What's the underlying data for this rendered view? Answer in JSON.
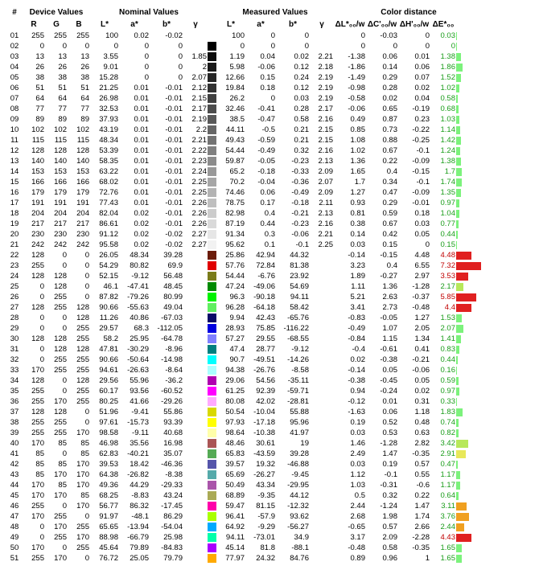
{
  "headerGroups": {
    "num": "#",
    "device": "Device Values",
    "nominal": "Nominal Values",
    "measured": "Measured Values",
    "color": "Color distance"
  },
  "headerCols": {
    "r": "R",
    "g": "G",
    "b": "B",
    "l": "L*",
    "a": "a*",
    "bs": "b*",
    "y": "γ",
    "ml": "L*",
    "ma": "a*",
    "mb": "b*",
    "my": "γ",
    "dl": "ΔL*₀₀/w",
    "dc": "ΔC'₀₀/w",
    "dh": "ΔH'₀₀/w",
    "de": "ΔE*₀₀"
  },
  "style": {
    "de_good_color": "#1a9c1a",
    "de_bad_color": "#c00000",
    "bar_max": 8.0
  },
  "rows": [
    {
      "i": "01",
      "r": 255,
      "g": 255,
      "b": 255,
      "l": "100",
      "a": "0.02",
      "bs": "-0.02",
      "y": "",
      "sw": "#ffffff",
      "ml": "100",
      "ma": "0",
      "mb": "0",
      "my": "",
      "dl": "0",
      "dc": "-0.03",
      "dh": "0",
      "de": "0.03",
      "bad": false,
      "bar": "#7cf27c"
    },
    {
      "i": "02",
      "r": 0,
      "g": 0,
      "b": 0,
      "l": "0",
      "a": "0",
      "bs": "0",
      "y": "",
      "sw": "#000000",
      "ml": "0",
      "ma": "0",
      "mb": "0",
      "my": "",
      "dl": "0",
      "dc": "0",
      "dh": "0",
      "de": "0",
      "bad": false,
      "bar": "#7cf27c"
    },
    {
      "i": "03",
      "r": 13,
      "g": 13,
      "b": 13,
      "l": "3.55",
      "a": "0",
      "bs": "0",
      "y": "1.85",
      "sw": "#0d0d0d",
      "ml": "1.19",
      "ma": "0.04",
      "mb": "0.02",
      "my": "2.21",
      "dl": "-1.38",
      "dc": "0.06",
      "dh": "0.01",
      "de": "1.38",
      "bad": false,
      "bar": "#7cf27c"
    },
    {
      "i": "04",
      "r": 26,
      "g": 26,
      "b": 26,
      "l": "9.01",
      "a": "0",
      "bs": "0",
      "y": "2",
      "sw": "#1a1a1a",
      "ml": "5.98",
      "ma": "-0.06",
      "mb": "0.12",
      "my": "2.18",
      "dl": "-1.86",
      "dc": "0.14",
      "dh": "0.06",
      "de": "1.86",
      "bad": false,
      "bar": "#7cf27c"
    },
    {
      "i": "05",
      "r": 38,
      "g": 38,
      "b": 38,
      "l": "15.28",
      "a": "0",
      "bs": "0",
      "y": "2.07",
      "sw": "#262626",
      "ml": "12.66",
      "ma": "0.15",
      "mb": "0.24",
      "my": "2.19",
      "dl": "-1.49",
      "dc": "0.29",
      "dh": "0.07",
      "de": "1.52",
      "bad": false,
      "bar": "#7cf27c"
    },
    {
      "i": "06",
      "r": 51,
      "g": 51,
      "b": 51,
      "l": "21.25",
      "a": "0.01",
      "bs": "-0.01",
      "y": "2.12",
      "sw": "#333333",
      "ml": "19.84",
      "ma": "0.18",
      "mb": "0.12",
      "my": "2.19",
      "dl": "-0.98",
      "dc": "0.28",
      "dh": "0.02",
      "de": "1.02",
      "bad": false,
      "bar": "#7cf27c"
    },
    {
      "i": "07",
      "r": 64,
      "g": 64,
      "b": 64,
      "l": "26.98",
      "a": "0.01",
      "bs": "-0.01",
      "y": "2.15",
      "sw": "#404040",
      "ml": "26.2",
      "ma": "0",
      "mb": "0.03",
      "my": "2.19",
      "dl": "-0.58",
      "dc": "0.02",
      "dh": "0.04",
      "de": "0.58",
      "bad": false,
      "bar": "#7cf27c"
    },
    {
      "i": "08",
      "r": 77,
      "g": 77,
      "b": 77,
      "l": "32.53",
      "a": "0.01",
      "bs": "-0.01",
      "y": "2.17",
      "sw": "#4d4d4d",
      "ml": "32.46",
      "ma": "-0.41",
      "mb": "0.28",
      "my": "2.17",
      "dl": "-0.06",
      "dc": "0.65",
      "dh": "-0.19",
      "de": "0.68",
      "bad": false,
      "bar": "#7cf27c"
    },
    {
      "i": "09",
      "r": 89,
      "g": 89,
      "b": 89,
      "l": "37.93",
      "a": "0.01",
      "bs": "-0.01",
      "y": "2.19",
      "sw": "#595959",
      "ml": "38.5",
      "ma": "-0.47",
      "mb": "0.58",
      "my": "2.16",
      "dl": "0.49",
      "dc": "0.87",
      "dh": "0.23",
      "de": "1.03",
      "bad": false,
      "bar": "#7cf27c"
    },
    {
      "i": "10",
      "r": 102,
      "g": 102,
      "b": 102,
      "l": "43.19",
      "a": "0.01",
      "bs": "-0.01",
      "y": "2.2",
      "sw": "#666666",
      "ml": "44.11",
      "ma": "-0.5",
      "mb": "0.21",
      "my": "2.15",
      "dl": "0.85",
      "dc": "0.73",
      "dh": "-0.22",
      "de": "1.14",
      "bad": false,
      "bar": "#7cf27c"
    },
    {
      "i": "11",
      "r": 115,
      "g": 115,
      "b": 115,
      "l": "48.34",
      "a": "0.01",
      "bs": "-0.01",
      "y": "2.21",
      "sw": "#737373",
      "ml": "49.43",
      "ma": "-0.59",
      "mb": "0.21",
      "my": "2.15",
      "dl": "1.08",
      "dc": "0.88",
      "dh": "-0.25",
      "de": "1.42",
      "bad": false,
      "bar": "#7cf27c"
    },
    {
      "i": "12",
      "r": 128,
      "g": 128,
      "b": 128,
      "l": "53.39",
      "a": "0.01",
      "bs": "-0.01",
      "y": "2.22",
      "sw": "#808080",
      "ml": "54.44",
      "ma": "-0.49",
      "mb": "0.32",
      "my": "2.16",
      "dl": "1.02",
      "dc": "0.67",
      "dh": "-0.1",
      "de": "1.24",
      "bad": false,
      "bar": "#7cf27c"
    },
    {
      "i": "13",
      "r": 140,
      "g": 140,
      "b": 140,
      "l": "58.35",
      "a": "0.01",
      "bs": "-0.01",
      "y": "2.23",
      "sw": "#8c8c8c",
      "ml": "59.87",
      "ma": "-0.05",
      "mb": "-0.23",
      "my": "2.13",
      "dl": "1.36",
      "dc": "0.22",
      "dh": "-0.09",
      "de": "1.38",
      "bad": false,
      "bar": "#7cf27c"
    },
    {
      "i": "14",
      "r": 153,
      "g": 153,
      "b": 153,
      "l": "63.22",
      "a": "0.01",
      "bs": "-0.01",
      "y": "2.24",
      "sw": "#999999",
      "ml": "65.2",
      "ma": "-0.18",
      "mb": "-0.33",
      "my": "2.09",
      "dl": "1.65",
      "dc": "0.4",
      "dh": "-0.15",
      "de": "1.7",
      "bad": false,
      "bar": "#7cf27c"
    },
    {
      "i": "15",
      "r": 166,
      "g": 166,
      "b": 166,
      "l": "68.02",
      "a": "0.01",
      "bs": "-0.01",
      "y": "2.25",
      "sw": "#a6a6a6",
      "ml": "70.2",
      "ma": "-0.04",
      "mb": "-0.36",
      "my": "2.07",
      "dl": "1.7",
      "dc": "0.34",
      "dh": "-0.1",
      "de": "1.74",
      "bad": false,
      "bar": "#7cf27c"
    },
    {
      "i": "16",
      "r": 179,
      "g": 179,
      "b": 179,
      "l": "72.76",
      "a": "0.01",
      "bs": "-0.01",
      "y": "2.25",
      "sw": "#b3b3b3",
      "ml": "74.46",
      "ma": "0.06",
      "mb": "-0.49",
      "my": "2.09",
      "dl": "1.27",
      "dc": "0.47",
      "dh": "-0.09",
      "de": "1.35",
      "bad": false,
      "bar": "#7cf27c"
    },
    {
      "i": "17",
      "r": 191,
      "g": 191,
      "b": 191,
      "l": "77.43",
      "a": "0.01",
      "bs": "-0.01",
      "y": "2.26",
      "sw": "#bfbfbf",
      "ml": "78.75",
      "ma": "0.17",
      "mb": "-0.18",
      "my": "2.11",
      "dl": "0.93",
      "dc": "0.29",
      "dh": "-0.01",
      "de": "0.97",
      "bad": false,
      "bar": "#7cf27c"
    },
    {
      "i": "18",
      "r": 204,
      "g": 204,
      "b": 204,
      "l": "82.04",
      "a": "0.02",
      "bs": "-0.01",
      "y": "2.26",
      "sw": "#cccccc",
      "ml": "82.98",
      "ma": "0.4",
      "mb": "-0.21",
      "my": "2.13",
      "dl": "0.81",
      "dc": "0.59",
      "dh": "0.18",
      "de": "1.04",
      "bad": false,
      "bar": "#7cf27c"
    },
    {
      "i": "19",
      "r": 217,
      "g": 217,
      "b": 217,
      "l": "86.61",
      "a": "0.02",
      "bs": "-0.01",
      "y": "2.26",
      "sw": "#d9d9d9",
      "ml": "87.19",
      "ma": "0.44",
      "mb": "-0.23",
      "my": "2.16",
      "dl": "0.38",
      "dc": "0.67",
      "dh": "0.03",
      "de": "0.77",
      "bad": false,
      "bar": "#7cf27c"
    },
    {
      "i": "20",
      "r": 230,
      "g": 230,
      "b": 230,
      "l": "91.12",
      "a": "0.02",
      "bs": "-0.02",
      "y": "2.27",
      "sw": "#e6e6e6",
      "ml": "91.34",
      "ma": "0.3",
      "mb": "-0.06",
      "my": "2.21",
      "dl": "0.14",
      "dc": "0.42",
      "dh": "0.05",
      "de": "0.44",
      "bad": false,
      "bar": "#7cf27c"
    },
    {
      "i": "21",
      "r": 242,
      "g": 242,
      "b": 242,
      "l": "95.58",
      "a": "0.02",
      "bs": "-0.02",
      "y": "2.27",
      "sw": "#f2f2f2",
      "ml": "95.62",
      "ma": "0.1",
      "mb": "-0.1",
      "my": "2.25",
      "dl": "0.03",
      "dc": "0.15",
      "dh": "0",
      "de": "0.15",
      "bad": false,
      "bar": "#7cf27c"
    },
    {
      "i": "22",
      "r": 128,
      "g": 0,
      "b": 0,
      "l": "26.05",
      "a": "48.34",
      "bs": "39.28",
      "y": "",
      "sw": "#6b1c0a",
      "ml": "25.86",
      "ma": "42.94",
      "mb": "44.32",
      "my": "",
      "dl": "-0.14",
      "dc": "-0.15",
      "dh": "4.48",
      "de": "4.48",
      "bad": true,
      "bar": "#e02020"
    },
    {
      "i": "23",
      "r": 255,
      "g": 0,
      "b": 0,
      "l": "54.29",
      "a": "80.82",
      "bs": "69.9",
      "y": "",
      "sw": "#e00000",
      "ml": "57.76",
      "ma": "72.84",
      "mb": "81.38",
      "my": "",
      "dl": "3.23",
      "dc": "0.4",
      "dh": "6.55",
      "de": "7.32",
      "bad": true,
      "bar": "#e02020"
    },
    {
      "i": "24",
      "r": 128,
      "g": 128,
      "b": 0,
      "l": "52.15",
      "a": "-9.12",
      "bs": "56.48",
      "y": "",
      "sw": "#7a7b1a",
      "ml": "54.44",
      "ma": "-6.76",
      "mb": "23.92",
      "my": "",
      "sw2": "#7a7b1a",
      "dl": "1.89",
      "dc": "-0.27",
      "dh": "2.97",
      "de": "3.53",
      "bad": true,
      "bar": "#e02020"
    },
    {
      "i": "25",
      "r": 0,
      "g": 128,
      "b": 0,
      "l": "46.1",
      "a": "-47.41",
      "bs": "48.45",
      "y": "",
      "sw": "#008a00",
      "ml": "47.24",
      "ma": "-49.06",
      "mb": "54.69",
      "my": "",
      "dl": "1.11",
      "dc": "1.36",
      "dh": "-1.28",
      "de": "2.17",
      "bad": false,
      "bar": "#b7e85a"
    },
    {
      "i": "26",
      "r": 0,
      "g": 255,
      "b": 0,
      "l": "87.82",
      "a": "-79.26",
      "bs": "80.99",
      "y": "",
      "sw": "#00f200",
      "ml": "96.3",
      "ma": "-90.18",
      "mb": "94.11",
      "my": "",
      "dl": "5.21",
      "dc": "2.63",
      "dh": "-0.37",
      "de": "5.85",
      "bad": true,
      "bar": "#e02020"
    },
    {
      "i": "27",
      "r": 128,
      "g": 255,
      "b": 128,
      "l": "90.66",
      "a": "-55.63",
      "bs": "49.04",
      "y": "",
      "sw": "#60ef60",
      "ml": "96.28",
      "ma": "-64.18",
      "mb": "58.42",
      "my": "",
      "dl": "3.41",
      "dc": "2.73",
      "dh": "-0.48",
      "de": "4.4",
      "bad": true,
      "bar": "#e02020"
    },
    {
      "i": "28",
      "r": 0,
      "g": 0,
      "b": 128,
      "l": "11.26",
      "a": "40.86",
      "bs": "-67.03",
      "y": "",
      "sw": "#0a0a68",
      "ml": "9.94",
      "ma": "42.43",
      "mb": "-65.76",
      "my": "",
      "dl": "-0.83",
      "dc": "-0.05",
      "dh": "1.27",
      "de": "1.53",
      "bad": false,
      "bar": "#7cf27c"
    },
    {
      "i": "29",
      "r": 0,
      "g": 0,
      "b": 255,
      "l": "29.57",
      "a": "68.3",
      "bs": "-112.05",
      "y": "",
      "sw": "#0000e0",
      "ml": "28.93",
      "ma": "75.85",
      "mb": "-116.22",
      "my": "",
      "dl": "-0.49",
      "dc": "1.07",
      "dh": "2.05",
      "de": "2.07",
      "bad": false,
      "bar": "#7cf27c"
    },
    {
      "i": "30",
      "r": 128,
      "g": 128,
      "b": 255,
      "l": "58.2",
      "a": "25.95",
      "bs": "-64.78",
      "y": "",
      "sw": "#8080ff",
      "ml": "57.27",
      "ma": "29.55",
      "mb": "-68.55",
      "my": "",
      "dl": "-0.84",
      "dc": "1.15",
      "dh": "1.34",
      "de": "1.41",
      "bad": false,
      "bar": "#7cf27c"
    },
    {
      "i": "31",
      "r": 0,
      "g": 128,
      "b": 128,
      "l": "47.81",
      "a": "-30.29",
      "bs": "-8.96",
      "y": "",
      "sw": "#008080",
      "ml": "47.4",
      "ma": "28.77",
      "mb": "-9.12",
      "my": "",
      "dl": "-0.4",
      "dc": "-0.61",
      "dh": "0.41",
      "de": "0.83",
      "bad": false,
      "bar": "#7cf27c"
    },
    {
      "i": "32",
      "r": 0,
      "g": 255,
      "b": 255,
      "l": "90.66",
      "a": "-50.64",
      "bs": "-14.98",
      "y": "",
      "sw": "#00ffff",
      "ml": "90.7",
      "ma": "-49.51",
      "mb": "-14.26",
      "my": "",
      "dl": "0.02",
      "dc": "-0.38",
      "dh": "-0.21",
      "de": "0.44",
      "bad": false,
      "bar": "#7cf27c"
    },
    {
      "i": "33",
      "r": 170,
      "g": 255,
      "b": 255,
      "l": "94.61",
      "a": "-26.63",
      "bs": "-8.64",
      "y": "",
      "sw": "#aaffff",
      "ml": "94.38",
      "ma": "-26.76",
      "mb": "-8.58",
      "my": "",
      "dl": "-0.14",
      "dc": "0.05",
      "dh": "-0.06",
      "de": "0.16",
      "bad": false,
      "bar": "#7cf27c"
    },
    {
      "i": "34",
      "r": 128,
      "g": 0,
      "b": 128,
      "l": "29.56",
      "a": "55.96",
      "bs": "-36.2",
      "y": "",
      "sw": "#b000b0",
      "ml": "29.06",
      "ma": "54.56",
      "mb": "-35.11",
      "my": "",
      "dl": "-0.38",
      "dc": "-0.45",
      "dh": "0.05",
      "de": "0.59",
      "bad": false,
      "bar": "#7cf27c"
    },
    {
      "i": "35",
      "r": 255,
      "g": 0,
      "b": 255,
      "l": "60.17",
      "a": "93.56",
      "bs": "-60.52",
      "y": "",
      "sw": "#ff00ff",
      "ml": "61.25",
      "ma": "92.39",
      "mb": "-59.71",
      "my": "",
      "dl": "0.94",
      "dc": "-0.24",
      "dh": "0.02",
      "de": "0.97",
      "bad": false,
      "bar": "#7cf27c"
    },
    {
      "i": "36",
      "r": 255,
      "g": 170,
      "b": 255,
      "l": "80.25",
      "a": "41.66",
      "bs": "-29.26",
      "y": "",
      "sw": "#ffaaff",
      "ml": "80.08",
      "ma": "42.02",
      "mb": "-28.81",
      "my": "",
      "dl": "-0.12",
      "dc": "0.01",
      "dh": "0.31",
      "de": "0.33",
      "bad": false,
      "bar": "#7cf27c"
    },
    {
      "i": "37",
      "r": 128,
      "g": 128,
      "b": 0,
      "l": "51.96",
      "a": "-9.41",
      "bs": "55.86",
      "y": "",
      "sw": "#d8d800",
      "ml": "50.54",
      "ma": "-10.04",
      "mb": "55.88",
      "my": "",
      "dl": "-1.63",
      "dc": "0.06",
      "dh": "1.18",
      "de": "1.83",
      "bad": false,
      "bar": "#7cf27c"
    },
    {
      "i": "38",
      "r": 255,
      "g": 255,
      "b": 0,
      "l": "97.61",
      "a": "-15.73",
      "bs": "93.39",
      "y": "",
      "sw": "#ffff00",
      "ml": "97.93",
      "ma": "-17.18",
      "mb": "95.96",
      "my": "",
      "dl": "0.19",
      "dc": "0.52",
      "dh": "0.48",
      "de": "0.74",
      "bad": false,
      "bar": "#7cf27c"
    },
    {
      "i": "39",
      "r": 255,
      "g": 255,
      "b": 170,
      "l": "98.58",
      "a": "-9.11",
      "bs": "40.68",
      "y": "",
      "sw": "#ffffaa",
      "ml": "98.64",
      "ma": "-10.38",
      "mb": "41.97",
      "my": "",
      "dl": "0.03",
      "dc": "0.53",
      "dh": "0.63",
      "de": "0.82",
      "bad": false,
      "bar": "#7cf27c"
    },
    {
      "i": "40",
      "r": 170,
      "g": 85,
      "b": 85,
      "l": "46.98",
      "a": "35.56",
      "bs": "16.98",
      "y": "",
      "sw": "#aa5555",
      "ml": "48.46",
      "ma": "30.61",
      "mb": "19",
      "my": "",
      "dl": "1.46",
      "dc": "-1.28",
      "dh": "2.82",
      "de": "3.42",
      "bad": false,
      "bar": "#b7e85a"
    },
    {
      "i": "41",
      "r": 85,
      "g": 0,
      "b": 85,
      "l": "62.83",
      "a": "-40.21",
      "bs": "35.07",
      "y": "",
      "sw": "#55aa55",
      "ml": "65.83",
      "ma": "-43.59",
      "mb": "39.28",
      "my": "",
      "dl": "2.49",
      "dc": "1.47",
      "dh": "-0.35",
      "de": "2.91",
      "bad": false,
      "bar": "#e8e85a"
    },
    {
      "i": "42",
      "r": 85,
      "g": 85,
      "b": 170,
      "l": "39.53",
      "a": "18.42",
      "bs": "-46.36",
      "y": "",
      "sw": "#5555aa",
      "ml": "39.57",
      "ma": "19.32",
      "mb": "-46.88",
      "my": "",
      "dl": "0.03",
      "dc": "0.19",
      "dh": "0.57",
      "de": "0.47",
      "bad": false,
      "bar": "#7cf27c"
    },
    {
      "i": "43",
      "r": 85,
      "g": 170,
      "b": 170,
      "l": "64.38",
      "a": "-26.82",
      "bs": "-8.38",
      "y": "",
      "sw": "#55aaaa",
      "ml": "65.69",
      "ma": "-26.27",
      "mb": "-9.45",
      "my": "",
      "dl": "1.12",
      "dc": "-0.1",
      "dh": "0.55",
      "de": "1.17",
      "bad": false,
      "bar": "#7cf27c"
    },
    {
      "i": "44",
      "r": 170,
      "g": 85,
      "b": 170,
      "l": "49.36",
      "a": "44.29",
      "bs": "-29.33",
      "y": "",
      "sw": "#aa55aa",
      "ml": "50.49",
      "ma": "43.34",
      "mb": "-29.95",
      "my": "",
      "dl": "1.03",
      "dc": "-0.31",
      "dh": "-0.6",
      "de": "1.17",
      "bad": false,
      "bar": "#7cf27c"
    },
    {
      "i": "45",
      "r": 170,
      "g": 170,
      "b": 85,
      "l": "68.25",
      "a": "-8.83",
      "bs": "43.24",
      "y": "",
      "sw": "#aaaa55",
      "ml": "68.89",
      "ma": "-9.35",
      "mb": "44.12",
      "my": "",
      "dl": "0.5",
      "dc": "0.32",
      "dh": "0.22",
      "de": "0.64",
      "bad": false,
      "bar": "#7cf27c"
    },
    {
      "i": "46",
      "r": 255,
      "g": 0,
      "b": 170,
      "l": "56.77",
      "a": "86.32",
      "bs": "-17.45",
      "y": "",
      "sw": "#ff00aa",
      "ml": "59.47",
      "ma": "81.15",
      "mb": "-12.32",
      "my": "",
      "dl": "2.44",
      "dc": "-1.24",
      "dh": "1.47",
      "de": "3.11",
      "bad": false,
      "bar": "#f0a020"
    },
    {
      "i": "47",
      "r": 170,
      "g": 255,
      "b": 0,
      "l": "91.97",
      "a": "-48.1",
      "bs": "86.29",
      "y": "",
      "sw": "#aaff00",
      "ml": "96.41",
      "ma": "-57.9",
      "mb": "93.62",
      "my": "",
      "dl": "2.68",
      "dc": "1.98",
      "dh": "1.74",
      "de": "3.76",
      "bad": false,
      "bar": "#f0a020"
    },
    {
      "i": "48",
      "r": 0,
      "g": 170,
      "b": 255,
      "l": "65.65",
      "a": "-13.94",
      "bs": "-54.04",
      "y": "",
      "sw": "#00aaff",
      "ml": "64.92",
      "ma": "-9.29",
      "mb": "-56.27",
      "my": "",
      "dl": "-0.65",
      "dc": "0.57",
      "dh": "2.66",
      "de": "2.44",
      "bad": false,
      "bar": "#f0a020"
    },
    {
      "i": "49",
      "r": 0,
      "g": 255,
      "b": 170,
      "l": "88.98",
      "a": "-66.79",
      "bs": "25.98",
      "y": "",
      "sw": "#00ffaa",
      "ml": "94.11",
      "ma": "-73.01",
      "mb": "34.9",
      "my": "",
      "dl": "3.17",
      "dc": "2.09",
      "dh": "-2.28",
      "de": "4.43",
      "bad": true,
      "bar": "#e02020"
    },
    {
      "i": "50",
      "r": 170,
      "g": 0,
      "b": 255,
      "l": "45.64",
      "a": "79.89",
      "bs": "-84.83",
      "y": "",
      "sw": "#aa00ff",
      "ml": "45.14",
      "ma": "81.8",
      "mb": "-88.1",
      "my": "",
      "dl": "-0.48",
      "dc": "0.58",
      "dh": "-0.35",
      "de": "1.65",
      "bad": false,
      "bar": "#7cf27c"
    },
    {
      "i": "51",
      "r": 255,
      "g": 170,
      "b": 0,
      "l": "76.72",
      "a": "25.05",
      "bs": "79.79",
      "y": "",
      "sw": "#ffaa00",
      "ml": "77.97",
      "ma": "24.32",
      "mb": "84.76",
      "my": "",
      "dl": "0.89",
      "dc": "0.96",
      "dh": "1",
      "de": "1.65",
      "bad": false,
      "bar": "#7cf27c"
    }
  ]
}
